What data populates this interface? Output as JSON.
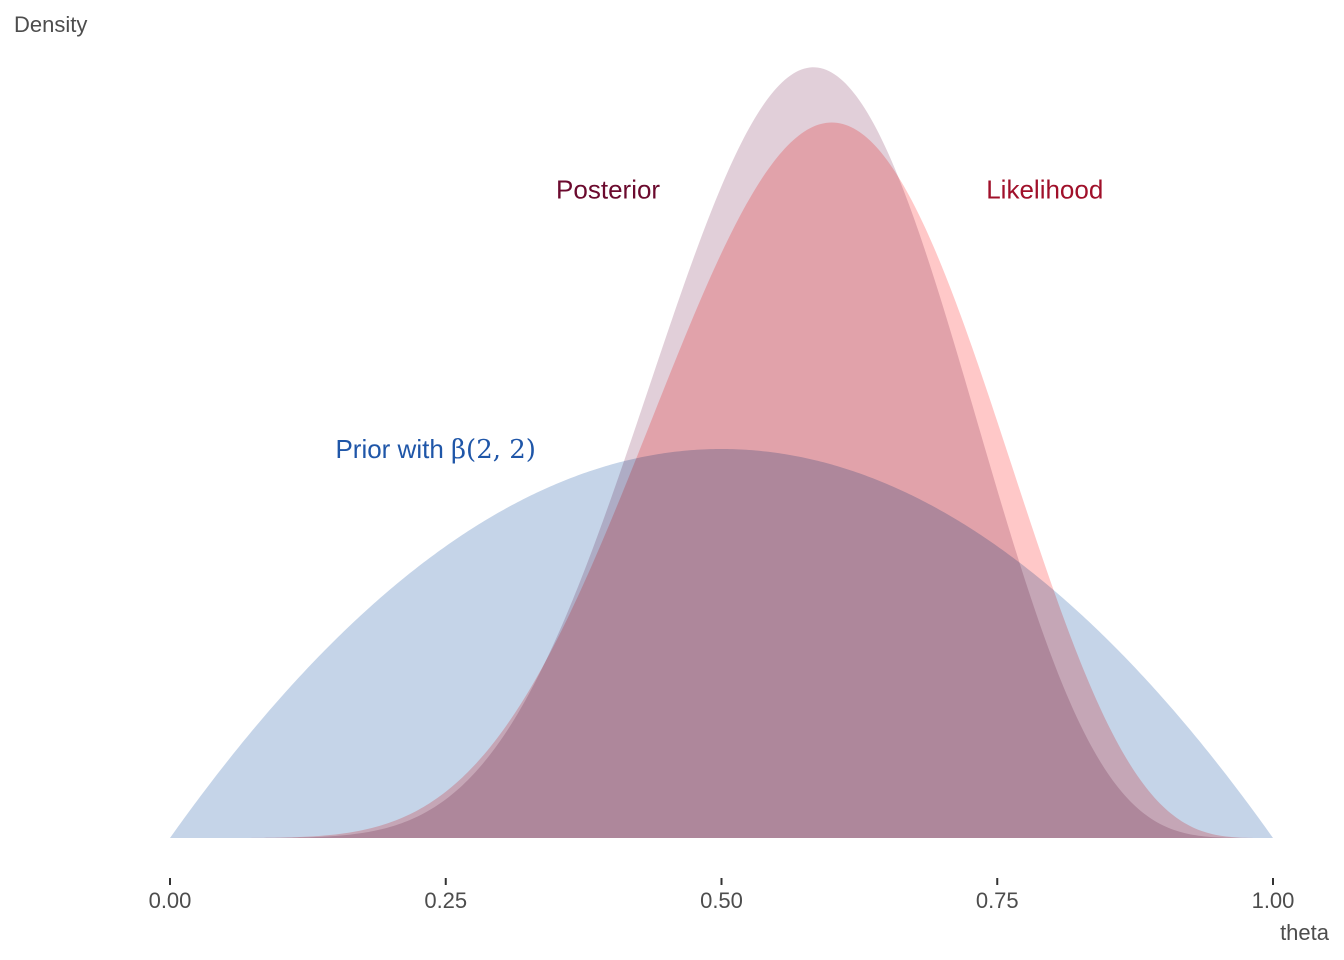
{
  "chart_data": {
    "type": "area",
    "xlabel": "theta",
    "ylabel": "Density",
    "xlim": [
      0,
      1
    ],
    "ylim": [
      0,
      3.0
    ],
    "grid": false,
    "legend": "none",
    "x_ticks": [
      0,
      0.25,
      0.5,
      0.75,
      1
    ],
    "x_tick_labels": [
      "0.00",
      "0.25",
      "0.50",
      "0.75",
      "1.00"
    ],
    "series": [
      {
        "key": "prior",
        "color": "#1f56a8",
        "fill": "#c5d4e8",
        "density_params": [
          2,
          2
        ],
        "x": [
          0,
          0.1,
          0.2,
          0.3,
          0.4,
          0.5,
          0.6,
          0.7,
          0.8,
          0.9,
          1.0
        ],
        "y": [
          0,
          0.54,
          0.96,
          1.26,
          1.44,
          1.5,
          1.44,
          1.26,
          0.96,
          0.54,
          0
        ]
      },
      {
        "key": "likelihood",
        "color": "#c0102a",
        "fill": "#ffb3b3",
        "density_params": [
          7,
          5
        ],
        "x": [
          0,
          0.1,
          0.2,
          0.3,
          0.4,
          0.5,
          0.6,
          0.7,
          0.8,
          0.9,
          1.0
        ],
        "y": [
          0,
          0.0,
          0.02,
          0.19,
          0.72,
          1.65,
          2.75,
          2.49,
          1.52,
          0.32,
          0
        ]
      },
      {
        "key": "posterior",
        "color": "#6b0a2e",
        "fill": "#d6bccb",
        "density_params": [
          8,
          6
        ],
        "x": [
          0,
          0.1,
          0.2,
          0.3,
          0.4,
          0.5,
          0.6,
          0.7,
          0.8,
          0.9,
          1.0
        ],
        "y": [
          0,
          0.0,
          0.03,
          0.28,
          1.17,
          2.3,
          2.89,
          2.19,
          0.85,
          0.09,
          0
        ]
      }
    ],
    "annotations": [
      {
        "key": "posterior",
        "text": "Posterior",
        "x": 0.35,
        "y": 2.5,
        "color": "#6b0a2e"
      },
      {
        "key": "likelihood",
        "text": "Likelihood",
        "x": 0.74,
        "y": 2.5,
        "color": "#a0102a"
      },
      {
        "key": "prior",
        "text_prefix": "Prior with ",
        "math": "β(2, 2)",
        "x": 0.15,
        "y": 1.5,
        "color": "#1f56a8"
      }
    ]
  }
}
